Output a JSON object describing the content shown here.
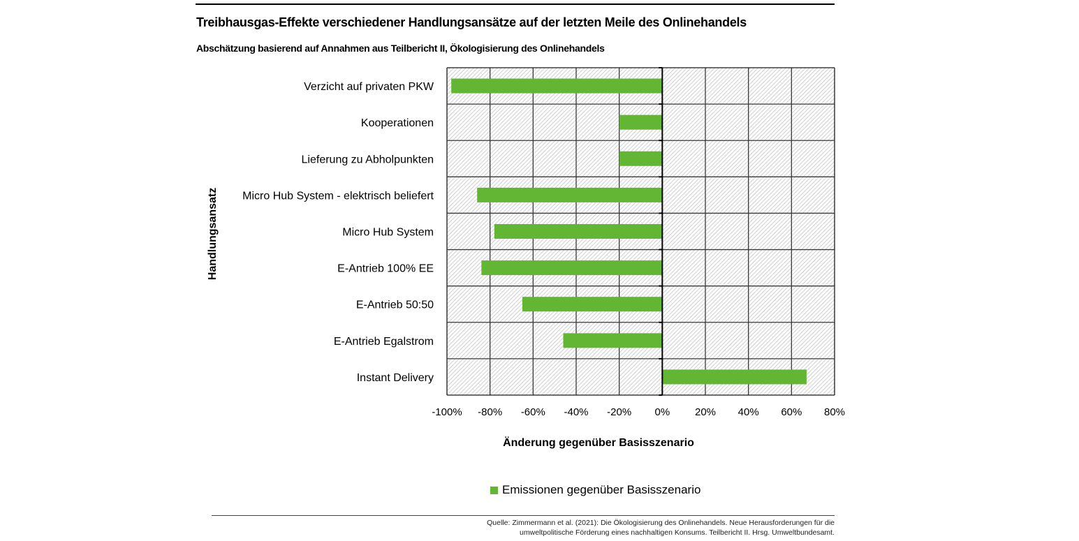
{
  "header": {
    "title": "Treibhausgas-Effekte verschiedener Handlungsansätze auf der letzten Meile des Onlinehandels",
    "subtitle": "Abschätzung basierend auf Annahmen aus Teilbericht II, Ökologisierung des Onlinehandels"
  },
  "chart_data": {
    "type": "bar",
    "orientation": "horizontal",
    "title": "Treibhausgas-Effekte verschiedener Handlungsansätze auf der letzten Meile des Onlinehandels",
    "subtitle": "Abschätzung basierend auf Annahmen aus Teilbericht II, Ökologisierung des Onlinehandels",
    "xlabel": "Änderung gegenüber Basisszenario",
    "ylabel": "Handlungsansatz",
    "xlim": [
      -100,
      80
    ],
    "x_ticks": [
      -100,
      -80,
      -60,
      -40,
      -20,
      0,
      20,
      40,
      60,
      80
    ],
    "x_tick_labels": [
      "-100%",
      "-80%",
      "-60%",
      "-40%",
      "-20%",
      "0%",
      "20%",
      "40%",
      "60%",
      "80%"
    ],
    "grid": true,
    "legend_position": "bottom",
    "categories": [
      "Verzicht auf privaten PKW",
      "Kooperationen",
      "Lieferung zu Abholpunkten",
      "Micro Hub System - elektrisch beliefert",
      "Micro Hub System",
      "E-Antrieb 100% EE",
      "E-Antrieb 50:50",
      "E-Antrieb Egalstrom",
      "Instant Delivery"
    ],
    "series": [
      {
        "name": "Emissionen gegenüber Basisszenario",
        "color": "#62B633",
        "values": [
          -98,
          -20,
          -20,
          -86,
          -78,
          -84,
          -65,
          -46,
          67
        ]
      }
    ]
  },
  "footer": {
    "source_line1": "Quelle: Zimmermann et al. (2021): Die Ökologisierung des Onlinehandels. Neue Herausforderungen für die",
    "source_line2": "umweltpolitische Förderung eines nachhaltigen Konsums. Teilbericht II. Hrsg. Umweltbundesamt."
  }
}
